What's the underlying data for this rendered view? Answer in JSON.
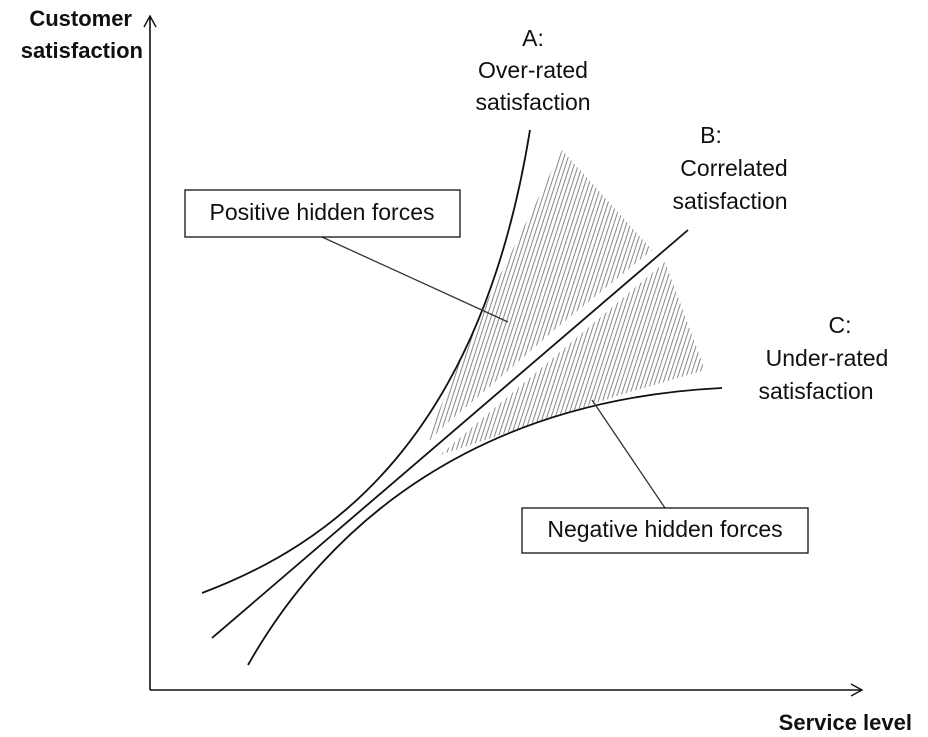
{
  "axes": {
    "y_label": [
      "Customer",
      "satisfaction"
    ],
    "x_label": "Service level"
  },
  "curves": [
    {
      "label": [
        "A:",
        "Over-rated",
        "satisfaction"
      ]
    },
    {
      "label": [
        "B:",
        "Correlated",
        "satisfaction"
      ]
    },
    {
      "label": [
        "C:",
        "Under-rated",
        "satisfaction"
      ]
    }
  ],
  "callouts": [
    {
      "label": "Positive hidden forces"
    },
    {
      "label": "Negative hidden forces"
    }
  ]
}
